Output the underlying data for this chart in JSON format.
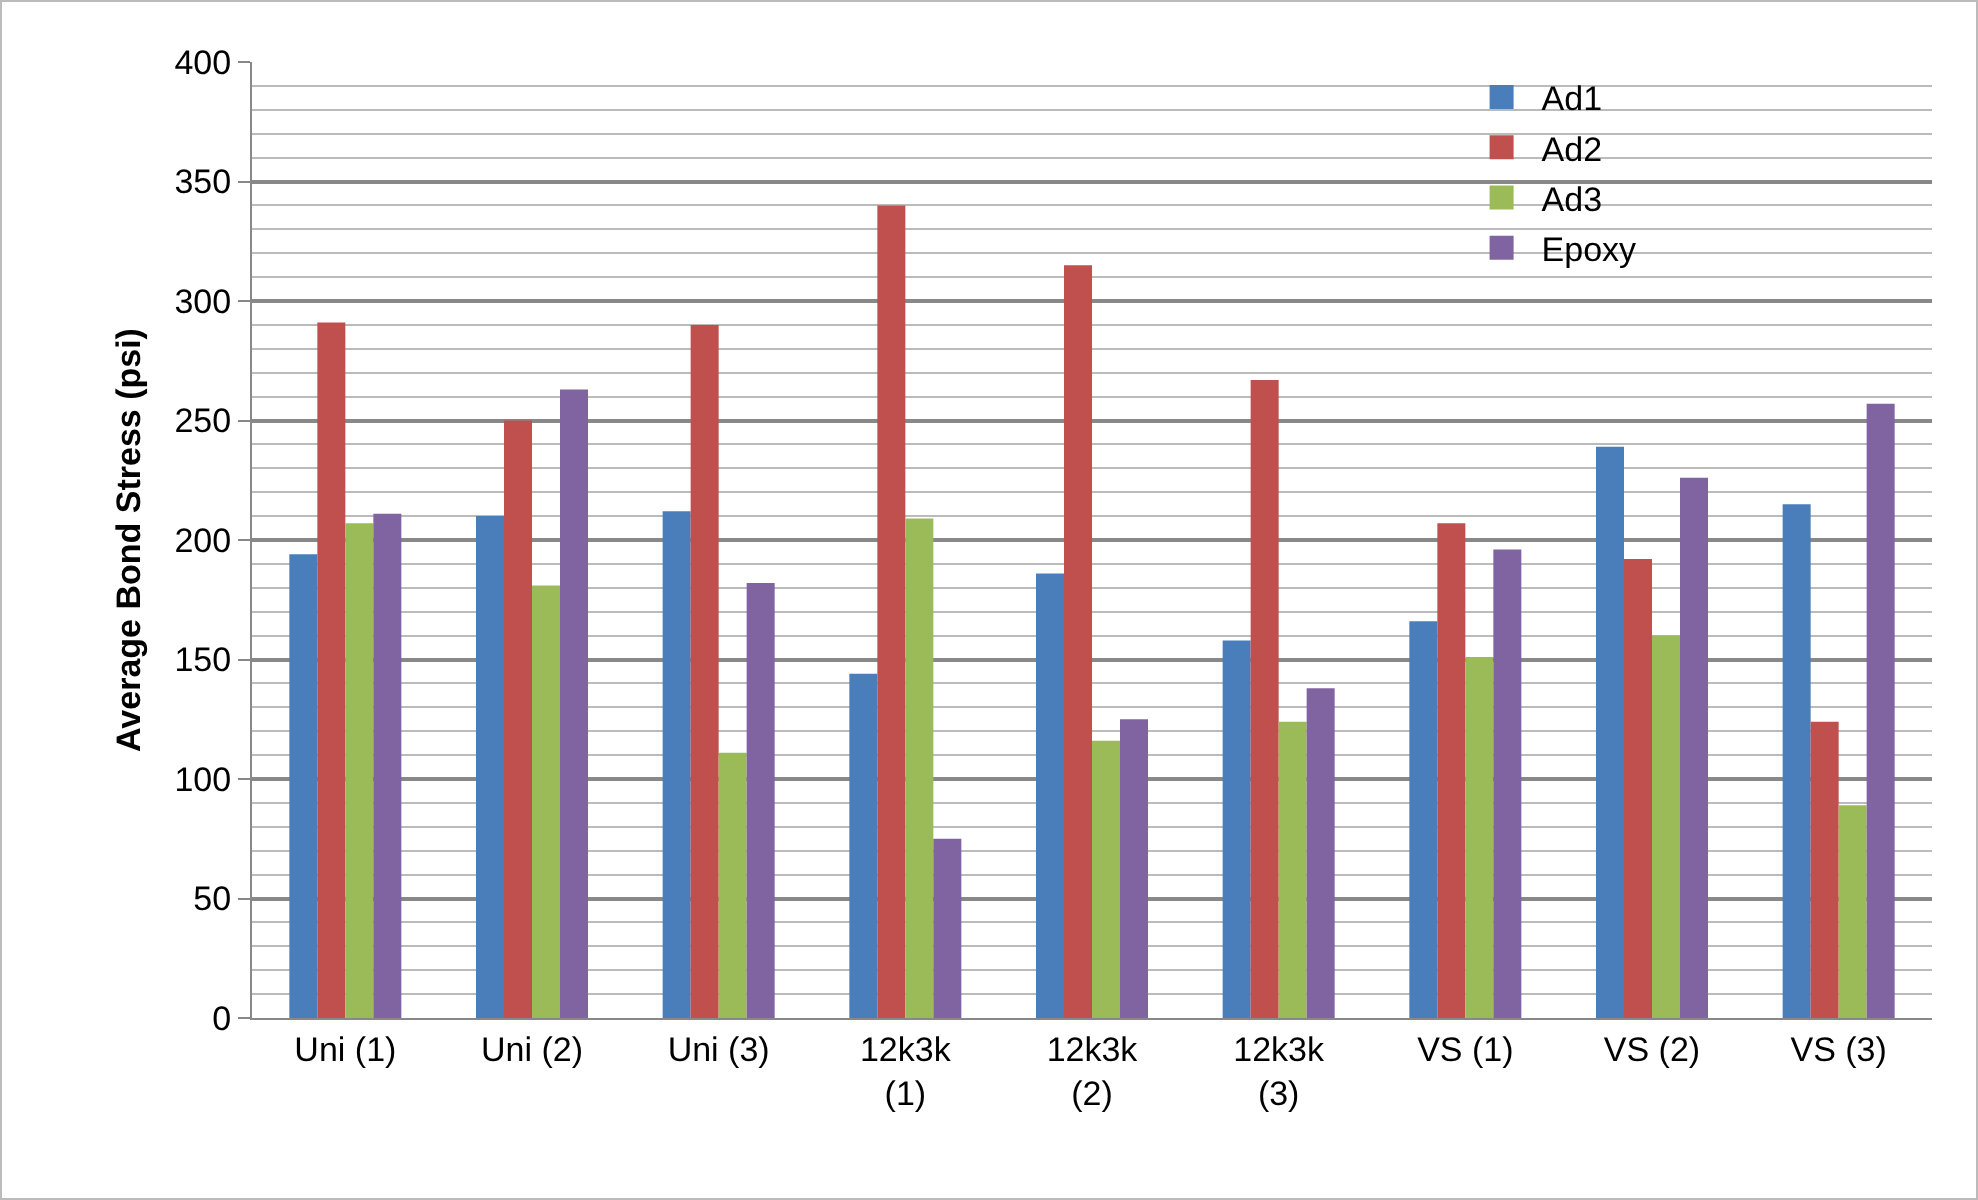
{
  "chart_data": {
    "type": "bar",
    "ylabel": "Average Bond Stress (psi)",
    "categories": [
      "Uni (1)",
      "Uni (2)",
      "Uni (3)",
      "12k3k (1)",
      "12k3k (2)",
      "12k3k (3)",
      "VS (1)",
      "VS (2)",
      "VS (3)"
    ],
    "series": [
      {
        "name": "Ad1",
        "color": "#4a7ebb",
        "values": [
          194,
          210,
          212,
          144,
          186,
          158,
          166,
          239,
          215
        ]
      },
      {
        "name": "Ad2",
        "color": "#c0504d",
        "values": [
          291,
          250,
          290,
          340,
          315,
          267,
          207,
          192,
          124
        ]
      },
      {
        "name": "Ad3",
        "color": "#9bbb59",
        "values": [
          207,
          181,
          111,
          209,
          116,
          124,
          151,
          160,
          89
        ]
      },
      {
        "name": "Epoxy",
        "color": "#8064a2",
        "values": [
          211,
          263,
          182,
          75,
          125,
          138,
          196,
          226,
          257
        ]
      }
    ],
    "ylim": [
      0,
      400
    ],
    "yticks": [
      0,
      50,
      100,
      150,
      200,
      250,
      300,
      350,
      400
    ],
    "grid": "y",
    "legend": "top right"
  }
}
